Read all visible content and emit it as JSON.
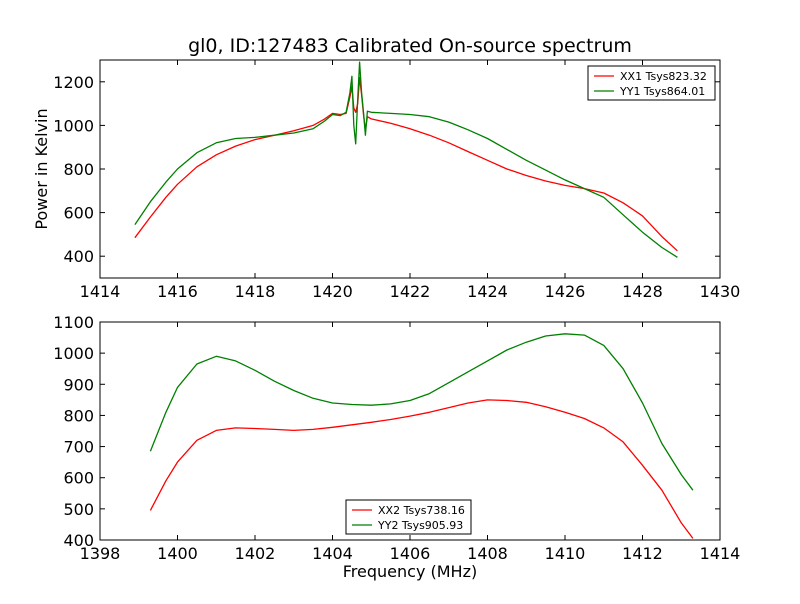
{
  "chart_data": [
    {
      "type": "line",
      "title": "gl0, ID:127483 Calibrated On-source spectrum",
      "xlabel": "",
      "ylabel": "Power in Kelvin",
      "xlim": [
        1414,
        1430
      ],
      "ylim": [
        300,
        1300
      ],
      "xticks": [
        1414,
        1416,
        1418,
        1420,
        1422,
        1424,
        1426,
        1428,
        1430
      ],
      "yticks": [
        400,
        600,
        800,
        1000,
        1200
      ],
      "grid": false,
      "legend_position": "upper-right",
      "series": [
        {
          "name": "XX1 Tsys823.32",
          "color": "#ff0000",
          "x": [
            1414.9,
            1415.3,
            1415.7,
            1416.0,
            1416.5,
            1417.0,
            1417.5,
            1418.0,
            1418.5,
            1419.0,
            1419.5,
            1419.8,
            1420.0,
            1420.2,
            1420.35,
            1420.45,
            1420.5,
            1420.55,
            1420.6,
            1420.65,
            1420.7,
            1420.75,
            1420.8,
            1420.85,
            1420.9,
            1421.0,
            1421.5,
            1422.0,
            1422.5,
            1423.0,
            1423.5,
            1424.0,
            1424.5,
            1425.0,
            1425.5,
            1426.0,
            1426.5,
            1427.0,
            1427.5,
            1428.0,
            1428.5,
            1428.9
          ],
          "y": [
            485,
            580,
            670,
            730,
            810,
            865,
            905,
            935,
            955,
            975,
            1000,
            1030,
            1055,
            1050,
            1055,
            1130,
            1180,
            1080,
            1060,
            1100,
            1220,
            1140,
            1050,
            980,
            1040,
            1030,
            1010,
            985,
            955,
            920,
            880,
            840,
            800,
            770,
            745,
            725,
            710,
            690,
            645,
            585,
            490,
            425
          ]
        },
        {
          "name": "YY1 Tsys864.01",
          "color": "#008000",
          "x": [
            1414.9,
            1415.3,
            1415.7,
            1416.0,
            1416.5,
            1417.0,
            1417.5,
            1418.0,
            1418.5,
            1419.0,
            1419.5,
            1419.8,
            1420.0,
            1420.2,
            1420.35,
            1420.45,
            1420.5,
            1420.55,
            1420.6,
            1420.65,
            1420.7,
            1420.75,
            1420.8,
            1420.85,
            1420.9,
            1421.0,
            1421.5,
            1422.0,
            1422.5,
            1423.0,
            1423.5,
            1424.0,
            1424.5,
            1425.0,
            1425.5,
            1426.0,
            1426.5,
            1427.0,
            1427.5,
            1428.0,
            1428.5,
            1428.9
          ],
          "y": [
            545,
            650,
            740,
            800,
            875,
            920,
            940,
            945,
            955,
            965,
            985,
            1020,
            1050,
            1045,
            1060,
            1150,
            1225,
            1000,
            915,
            1120,
            1290,
            1150,
            1060,
            955,
            1065,
            1060,
            1055,
            1050,
            1040,
            1015,
            980,
            940,
            890,
            840,
            795,
            750,
            710,
            670,
            590,
            510,
            440,
            395
          ]
        }
      ]
    },
    {
      "type": "line",
      "title": "",
      "xlabel": "Frequency (MHz)",
      "ylabel": "",
      "xlim": [
        1398,
        1414
      ],
      "ylim": [
        400,
        1100
      ],
      "xticks": [
        1398,
        1400,
        1402,
        1404,
        1406,
        1408,
        1410,
        1412,
        1414
      ],
      "yticks": [
        400,
        500,
        600,
        700,
        800,
        900,
        1000,
        1100
      ],
      "grid": false,
      "legend_position": "lower-center",
      "series": [
        {
          "name": "XX2 Tsys738.16",
          "color": "#ff0000",
          "x": [
            1399.3,
            1399.7,
            1400.0,
            1400.5,
            1401.0,
            1401.5,
            1402.0,
            1402.5,
            1403.0,
            1403.5,
            1404.0,
            1404.5,
            1405.0,
            1405.5,
            1406.0,
            1406.5,
            1407.0,
            1407.5,
            1408.0,
            1408.5,
            1409.0,
            1409.5,
            1410.0,
            1410.5,
            1411.0,
            1411.5,
            1412.0,
            1412.5,
            1413.0,
            1413.3
          ],
          "y": [
            495,
            590,
            650,
            720,
            752,
            760,
            758,
            755,
            752,
            755,
            762,
            770,
            778,
            787,
            798,
            810,
            825,
            840,
            850,
            848,
            842,
            828,
            810,
            790,
            760,
            715,
            640,
            560,
            455,
            405
          ]
        },
        {
          "name": "YY2 Tsys905.93",
          "color": "#008000",
          "x": [
            1399.3,
            1399.7,
            1400.0,
            1400.5,
            1401.0,
            1401.5,
            1402.0,
            1402.5,
            1403.0,
            1403.5,
            1404.0,
            1404.5,
            1405.0,
            1405.5,
            1406.0,
            1406.5,
            1407.0,
            1407.5,
            1408.0,
            1408.5,
            1409.0,
            1409.5,
            1410.0,
            1410.5,
            1411.0,
            1411.5,
            1412.0,
            1412.5,
            1413.0,
            1413.3
          ],
          "y": [
            685,
            810,
            890,
            965,
            990,
            975,
            945,
            910,
            880,
            855,
            840,
            835,
            833,
            837,
            848,
            870,
            905,
            940,
            975,
            1010,
            1035,
            1055,
            1062,
            1058,
            1025,
            950,
            840,
            710,
            610,
            560
          ]
        }
      ]
    }
  ]
}
